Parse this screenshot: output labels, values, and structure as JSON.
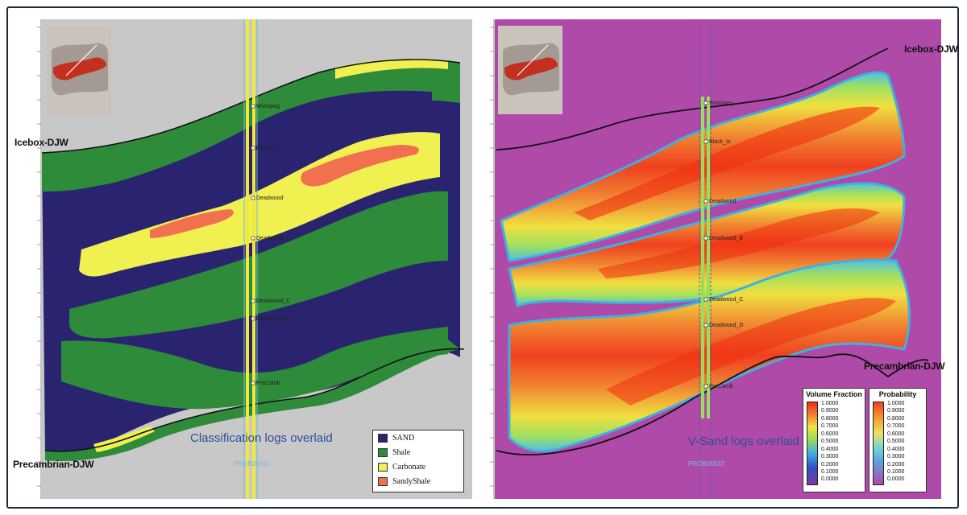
{
  "left_panel": {
    "horizon_top": "Icebox-DJW",
    "horizon_bottom": "Precambrian-DJW",
    "caption": "Classification logs overlaid",
    "well_name": "PROB05633",
    "legend": [
      {
        "label": "SAND",
        "color": "#2a2470"
      },
      {
        "label": "Shale",
        "color": "#2e8b3a"
      },
      {
        "label": "Carbonate",
        "color": "#f0f050"
      },
      {
        "label": "SandyShale",
        "color": "#f07050"
      }
    ],
    "well_tops": [
      "Winnipeg",
      "Black_Is",
      "Deadwood",
      "Deadwood_B",
      "Deadwood_C",
      "Deadwood_D",
      "PreCamb"
    ]
  },
  "right_panel": {
    "horizon_top": "Icebox-DJW",
    "horizon_bottom": "Precambrian-DJW",
    "caption": "V-Sand logs overlaid",
    "well_name": "PROB05633",
    "colorbars": [
      {
        "title": "Volume Fraction",
        "ticks": [
          "1.0000",
          "0.9000",
          "0.8000",
          "0.7000",
          "0.6000",
          "0.5000",
          "0.4000",
          "0.3000",
          "0.2000",
          "0.1000",
          "0.0000"
        ]
      },
      {
        "title": "Probability",
        "ticks": [
          "1.0000",
          "0.9000",
          "0.8000",
          "0.7000",
          "0.6000",
          "0.5000",
          "0.4000",
          "0.3000",
          "0.2000",
          "0.1000",
          "0.0000"
        ]
      }
    ],
    "well_tops": [
      "Winnipeg",
      "Black_Is",
      "Deadwood",
      "Deadwood_B",
      "Deadwood_C",
      "Deadwood_D",
      "PreCamb"
    ]
  },
  "colors": {
    "background_grey": "#c8c8c8",
    "background_magenta": "#b04aa8",
    "frame": "#1a2a40"
  }
}
